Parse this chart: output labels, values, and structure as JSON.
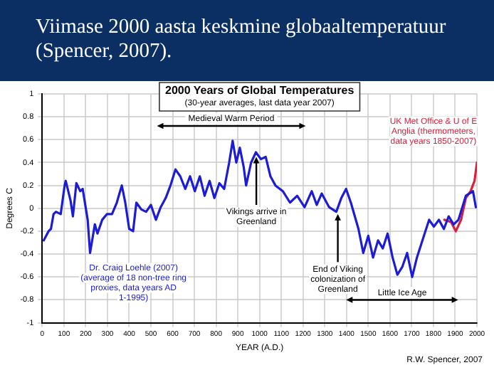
{
  "chart_data": {
    "type": "line",
    "title": "Viimase 2000 aasta keskmine globaaltemperatuur (Spencer, 2007).",
    "subtitle": "2000 Years of Global Temperatures",
    "xlabel": "YEAR (A.D.)",
    "ylabel": "Degrees C",
    "annotations": [
      "(30-year averages, last data year 2007)",
      "R.W. Spencer, 2007",
      "Medieval Warm Period",
      "Little Ice Age",
      {
        "text": "Vikings arrive in Greenland",
        "x": 985,
        "y": 0.45
      },
      {
        "text": "End of Viking colonization of Greenland",
        "x": 1360,
        "y": -0.05
      }
    ],
    "series": [
      {
        "name": "Dr. Craig Loehle (2007) (average of 18 non-tree ring proxies, data years AD 1-1995)",
        "color": "#1c1cd6",
        "x": [
          7,
          29,
          40,
          52,
          63,
          85,
          103,
          108,
          130,
          141,
          157,
          175,
          186,
          209,
          220,
          242,
          254,
          276,
          298,
          321,
          343,
          366,
          382,
          400,
          418,
          433,
          456,
          478,
          500,
          523,
          545,
          568,
          590,
          613,
          635,
          658,
          680,
          702,
          725,
          747,
          770,
          792,
          815,
          837,
          860,
          876,
          893,
          909,
          927,
          938,
          961,
          983,
          1006,
          1028,
          1050,
          1073,
          1107,
          1140,
          1173,
          1207,
          1240,
          1263,
          1286,
          1320,
          1353,
          1376,
          1398,
          1420,
          1455,
          1477,
          1500,
          1522,
          1545,
          1567,
          1589,
          1612,
          1634,
          1657,
          1679,
          1702,
          1724,
          1746,
          1780,
          1802,
          1825,
          1848,
          1870,
          1893,
          1915,
          1949,
          1982,
          1995
        ],
        "values": [
          -0.28,
          -0.2,
          -0.18,
          -0.05,
          -0.03,
          -0.05,
          0.2,
          0.24,
          0.07,
          -0.07,
          0.22,
          0.15,
          0.17,
          -0.1,
          -0.39,
          -0.14,
          -0.22,
          -0.1,
          -0.05,
          -0.05,
          0.05,
          0.2,
          0.05,
          -0.18,
          -0.2,
          0.05,
          -0.01,
          -0.03,
          0.03,
          -0.1,
          0.01,
          0.09,
          0.2,
          0.34,
          0.28,
          0.17,
          0.28,
          0.15,
          0.28,
          0.11,
          0.24,
          0.09,
          0.22,
          0.17,
          0.4,
          0.59,
          0.4,
          0.53,
          0.36,
          0.2,
          0.4,
          0.49,
          0.43,
          0.45,
          0.28,
          0.2,
          0.15,
          0.05,
          0.11,
          0.01,
          0.15,
          0.03,
          0.13,
          0.01,
          -0.03,
          0.09,
          0.17,
          0.05,
          -0.18,
          -0.39,
          -0.24,
          -0.43,
          -0.28,
          -0.35,
          -0.22,
          -0.43,
          -0.58,
          -0.51,
          -0.39,
          -0.6,
          -0.43,
          -0.3,
          -0.1,
          -0.16,
          -0.1,
          -0.18,
          -0.07,
          -0.14,
          -0.1,
          0.11,
          0.15,
          0.01
        ]
      },
      {
        "name": "UK Met Office & U of E Anglia (thermometers, data years 1850-2007)",
        "color": "#d8203c",
        "x": [
          1850,
          1881,
          1903,
          1927,
          1949,
          1971,
          1989,
          2000
        ],
        "values": [
          -0.1,
          -0.12,
          -0.2,
          -0.1,
          0.09,
          0.15,
          0.24,
          0.4
        ]
      }
    ],
    "xlim": [
      0,
      2000
    ],
    "xticks": [
      0,
      100,
      200,
      300,
      400,
      500,
      600,
      700,
      800,
      900,
      1000,
      1100,
      1200,
      1300,
      1400,
      1500,
      1600,
      1700,
      1800,
      1900,
      2000
    ],
    "ylim": [
      -1,
      1
    ],
    "yticks": [
      -1,
      -0.8,
      -0.6,
      -0.4,
      -0.2,
      0,
      0.2,
      0.4,
      0.6,
      0.8,
      1
    ],
    "grid": true,
    "legend": false,
    "marker": "none",
    "line_style": "solid"
  }
}
